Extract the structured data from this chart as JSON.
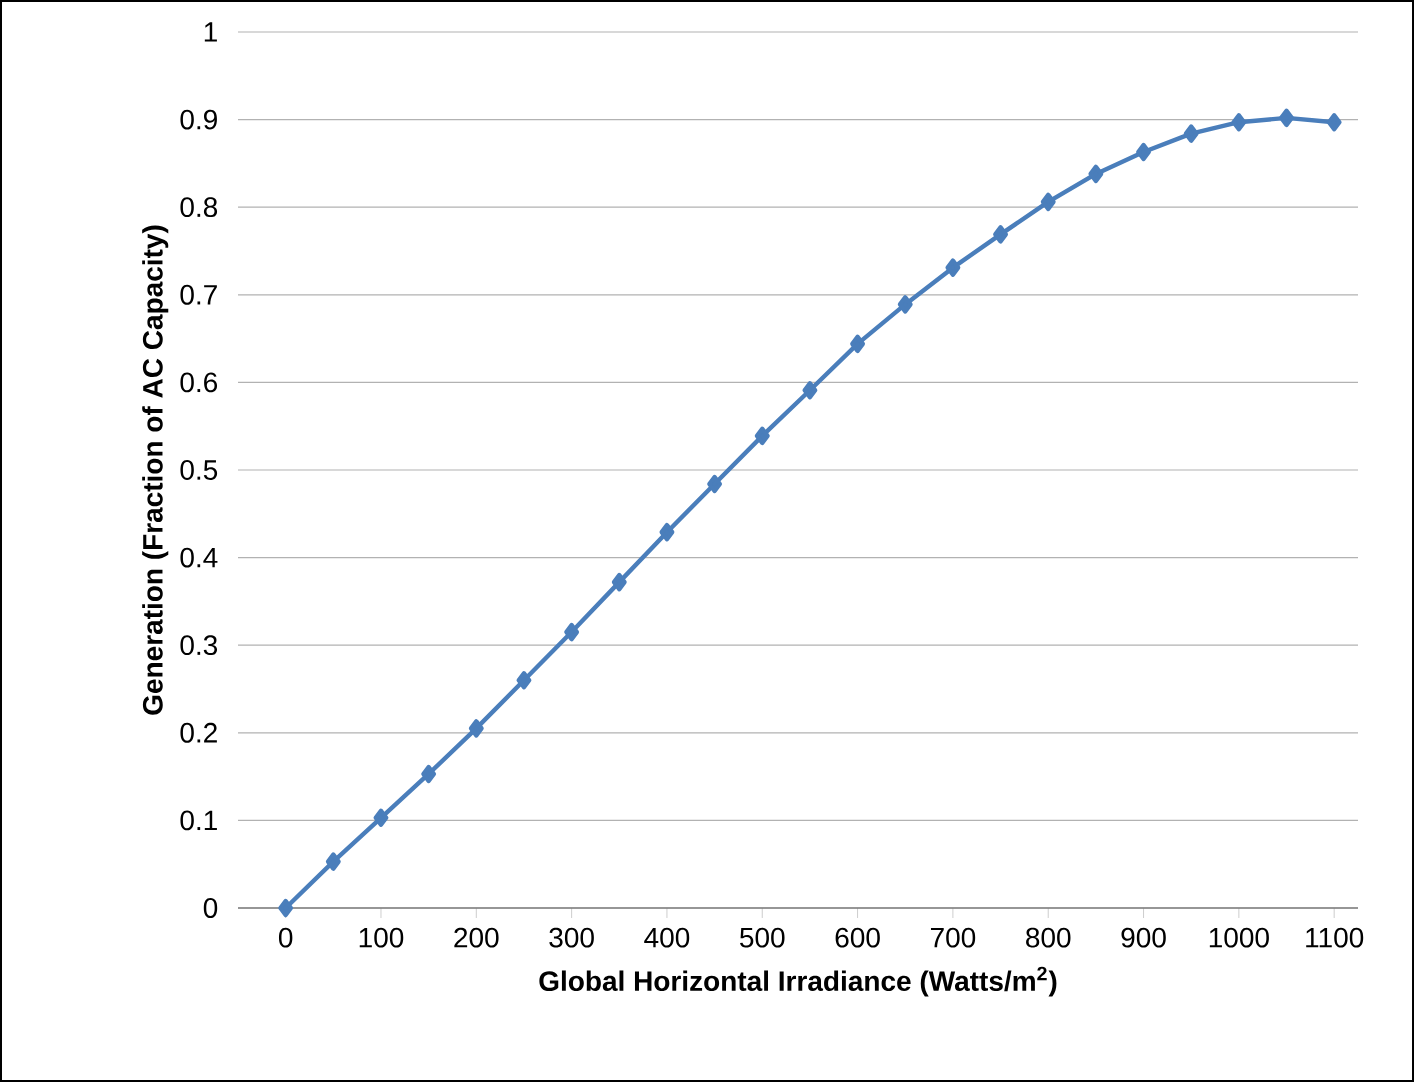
{
  "chart_data": {
    "type": "line",
    "xlabel": "Global Horizontal Irradiance (Watts/m$^{2}$)",
    "ylabel": "Generation (Fraction of AC Capacity)",
    "x": [
      0,
      50,
      100,
      150,
      200,
      250,
      300,
      350,
      400,
      450,
      500,
      550,
      600,
      650,
      700,
      750,
      800,
      850,
      900,
      950,
      1000,
      1050,
      1100
    ],
    "series": [
      {
        "color": "#4a7ebb",
        "values": [
          0,
          0.053,
          0.103,
          0.153,
          0.205,
          0.26,
          0.315,
          0.372,
          0.429,
          0.484,
          0.539,
          0.591,
          0.644,
          0.689,
          0.731,
          0.769,
          0.806,
          0.838,
          0.863,
          0.884,
          0.897,
          0.902,
          0.897
        ]
      }
    ],
    "xlim": [
      -50,
      1125
    ],
    "ylim": [
      0,
      1
    ],
    "xticks": [
      0,
      100,
      200,
      300,
      400,
      500,
      600,
      700,
      800,
      900,
      1000,
      1100
    ],
    "yticks": [
      0,
      0.1,
      0.2,
      0.3,
      0.4,
      0.5,
      0.6,
      0.7,
      0.8,
      0.9,
      1
    ],
    "grid": "y",
    "marker": "diamond",
    "line_style": "solid"
  }
}
